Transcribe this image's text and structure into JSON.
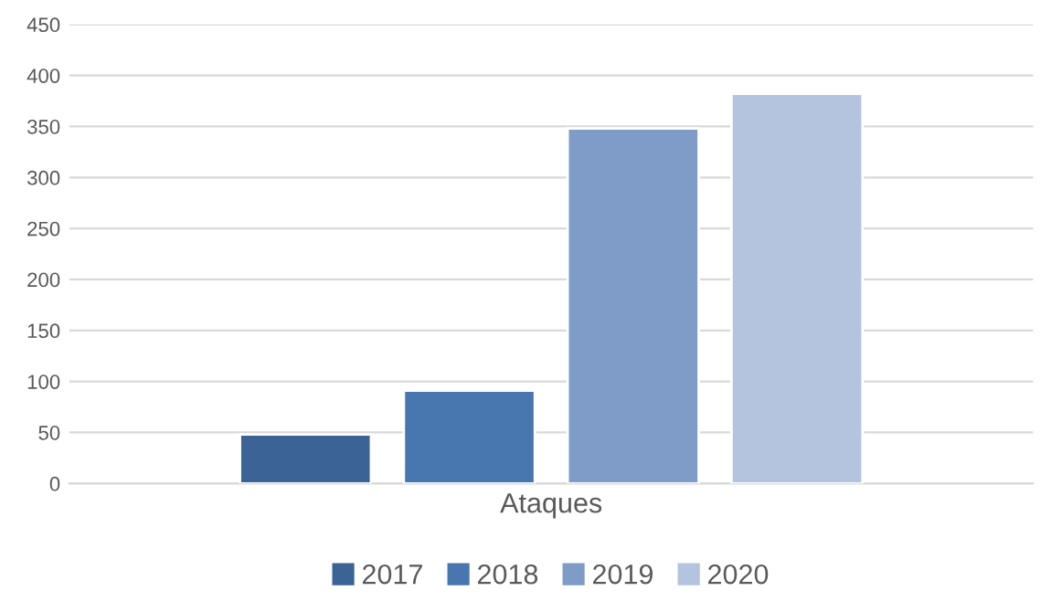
{
  "chart_data": {
    "type": "bar",
    "categories": [
      "Ataques"
    ],
    "series": [
      {
        "name": "2017",
        "color": "#3b6396",
        "values": [
          48
        ]
      },
      {
        "name": "2018",
        "color": "#4877b0",
        "values": [
          91
        ]
      },
      {
        "name": "2019",
        "color": "#7f9cc8",
        "values": [
          348
        ]
      },
      {
        "name": "2020",
        "color": "#b4c3de",
        "values": [
          382
        ]
      }
    ],
    "ylim": [
      0,
      450
    ],
    "yticks": [
      0,
      50,
      100,
      150,
      200,
      250,
      300,
      350,
      400,
      450
    ],
    "grid": "y",
    "legend": "bottom"
  }
}
